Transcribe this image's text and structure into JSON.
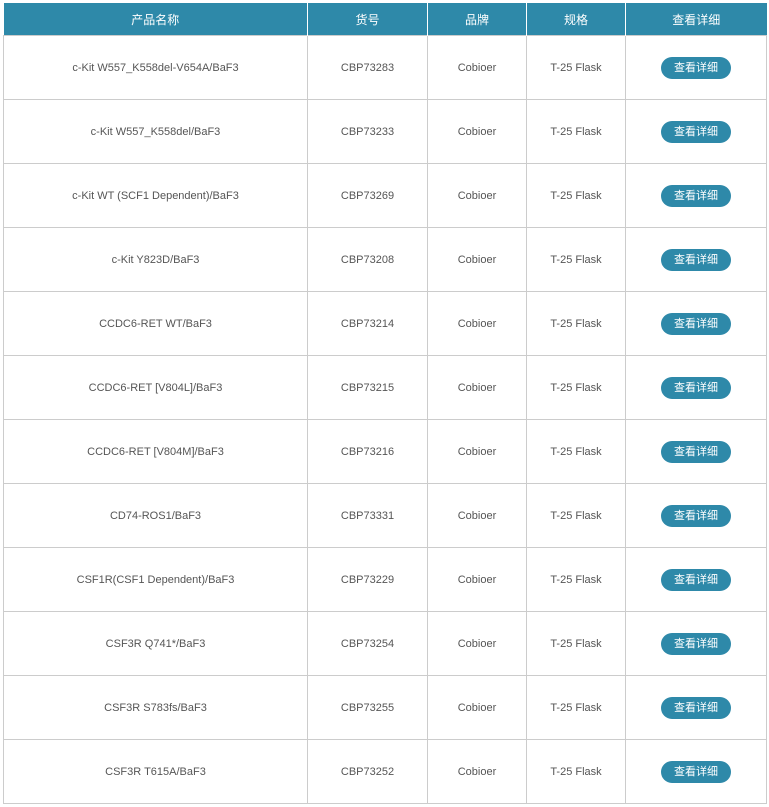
{
  "header": {
    "name": "产品名称",
    "sku": "货号",
    "brand": "品牌",
    "spec": "规格",
    "detail": "查看详细"
  },
  "accent": "#2e89a9",
  "rows": [
    {
      "name": "c-Kit W557_K558del-V654A/BaF3",
      "sku": "CBP73283",
      "brand": "Cobioer",
      "spec": "T-25 Flask",
      "button": "查看详细"
    },
    {
      "name": "c-Kit W557_K558del/BaF3",
      "sku": "CBP73233",
      "brand": "Cobioer",
      "spec": "T-25 Flask",
      "button": "查看详细"
    },
    {
      "name": "c-Kit WT (SCF1 Dependent)/BaF3",
      "sku": "CBP73269",
      "brand": "Cobioer",
      "spec": "T-25 Flask",
      "button": "查看详细"
    },
    {
      "name": "c-Kit Y823D/BaF3",
      "sku": "CBP73208",
      "brand": "Cobioer",
      "spec": "T-25 Flask",
      "button": "查看详细"
    },
    {
      "name": "CCDC6-RET WT/BaF3",
      "sku": "CBP73214",
      "brand": "Cobioer",
      "spec": "T-25 Flask",
      "button": "查看详细"
    },
    {
      "name": "CCDC6-RET [V804L]/BaF3",
      "sku": "CBP73215",
      "brand": "Cobioer",
      "spec": "T-25 Flask",
      "button": "查看详细"
    },
    {
      "name": "CCDC6-RET [V804M]/BaF3",
      "sku": "CBP73216",
      "brand": "Cobioer",
      "spec": "T-25 Flask",
      "button": "查看详细"
    },
    {
      "name": "CD74-ROS1/BaF3",
      "sku": "CBP73331",
      "brand": "Cobioer",
      "spec": "T-25 Flask",
      "button": "查看详细"
    },
    {
      "name": "CSF1R(CSF1 Dependent)/BaF3",
      "sku": "CBP73229",
      "brand": "Cobioer",
      "spec": "T-25 Flask",
      "button": "查看详细"
    },
    {
      "name": "CSF3R Q741*/BaF3",
      "sku": "CBP73254",
      "brand": "Cobioer",
      "spec": "T-25 Flask",
      "button": "查看详细"
    },
    {
      "name": "CSF3R S783fs/BaF3",
      "sku": "CBP73255",
      "brand": "Cobioer",
      "spec": "T-25 Flask",
      "button": "查看详细"
    },
    {
      "name": "CSF3R T615A/BaF3",
      "sku": "CBP73252",
      "brand": "Cobioer",
      "spec": "T-25 Flask",
      "button": "查看详细"
    }
  ]
}
